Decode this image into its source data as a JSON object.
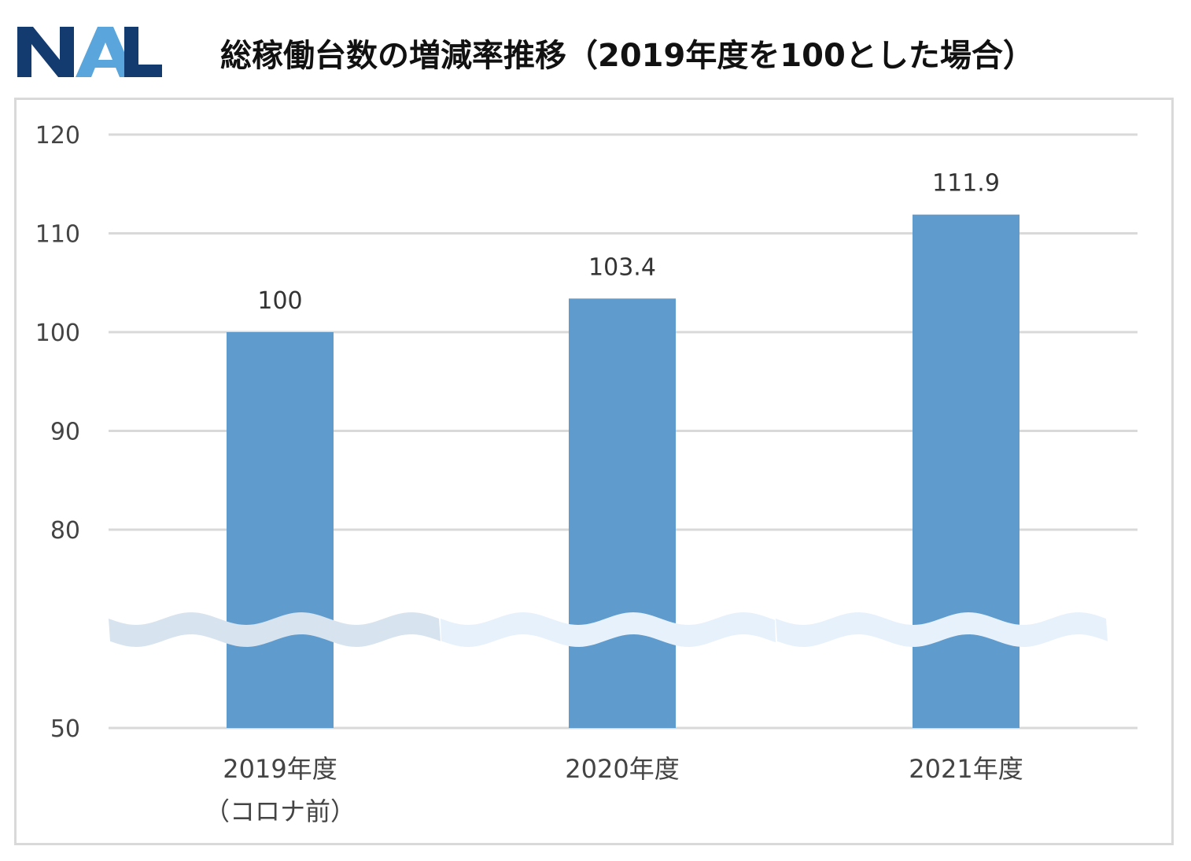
{
  "header": {
    "logo_text": "NAL",
    "title": "総稼働台数の増減率推移（2019年度を100とした場合）"
  },
  "colors": {
    "bar": "#5f9bcd",
    "grid": "#d9d9d9",
    "logo_dark": "#143b6f",
    "logo_light": "#5aa6dc"
  },
  "chart_data": {
    "type": "bar",
    "categories": [
      "2019年度\n（コロナ前）",
      "2020年度",
      "2021年度"
    ],
    "values": [
      100,
      103.4,
      111.9
    ],
    "data_labels": [
      "100",
      "103.4",
      "111.9"
    ],
    "y_ticks": [
      "120",
      "110",
      "100",
      "90",
      "80",
      "50"
    ],
    "y_tick_values": [
      120,
      110,
      100,
      90,
      80,
      50
    ],
    "axis_break": true,
    "grid": true,
    "legend": "none",
    "xlabel": "",
    "ylabel": ""
  }
}
